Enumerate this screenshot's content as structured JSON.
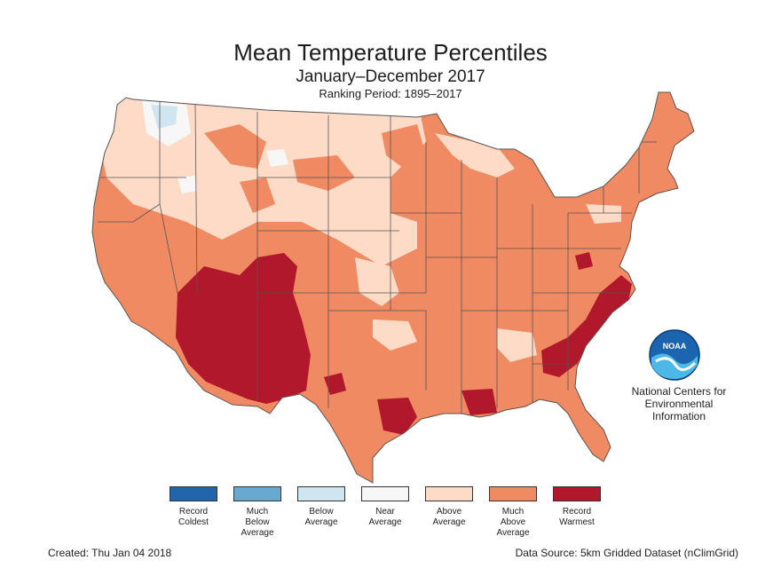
{
  "header": {
    "title": "Mean Temperature Percentiles",
    "subtitle": "January–December 2017",
    "period": "Ranking Period: 1895–2017"
  },
  "colors": {
    "record_coldest": "#2166ac",
    "much_below": "#67a9cf",
    "below": "#d1e5f0",
    "near": "#f7f7f7",
    "above": "#fddbc7",
    "much_above": "#ef8a62",
    "record_warmest": "#b2182b",
    "state_border": "#555555"
  },
  "logo": {
    "icon": "noaa-logo",
    "text": "NOAA",
    "org_lines": [
      "National Centers for",
      "Environmental",
      "Information"
    ]
  },
  "legend": [
    {
      "lines": [
        "Record",
        "Coldest"
      ],
      "color": "#2166ac"
    },
    {
      "lines": [
        "Much",
        "Below",
        "Average"
      ],
      "color": "#67a9cf"
    },
    {
      "lines": [
        "Below",
        "Average"
      ],
      "color": "#d1e5f0"
    },
    {
      "lines": [
        "Near",
        "Average"
      ],
      "color": "#f7f7f7"
    },
    {
      "lines": [
        "Above",
        "Average"
      ],
      "color": "#fddbc7"
    },
    {
      "lines": [
        "Much",
        "Above",
        "Average"
      ],
      "color": "#ef8a62"
    },
    {
      "lines": [
        "Record",
        "Warmest"
      ],
      "color": "#b2182b"
    }
  ],
  "footer": {
    "created": "Created: Thu Jan 04 2018",
    "source": "Data Source: 5km Gridded Dataset (nClimGrid)"
  }
}
